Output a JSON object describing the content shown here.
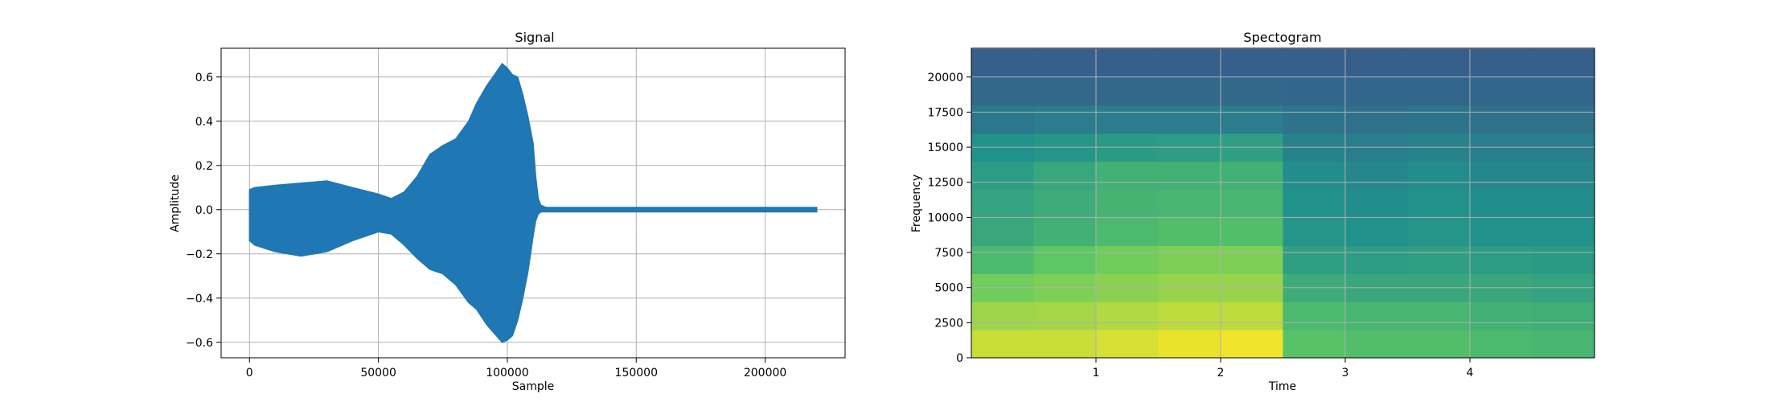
{
  "chart_data": [
    {
      "type": "line",
      "title": "Signal",
      "xlabel": "Sample",
      "ylabel": "Amplitude",
      "xlim": [
        -11000,
        231000
      ],
      "ylim": [
        -0.67,
        0.73
      ],
      "xticks": [
        0,
        50000,
        100000,
        150000,
        200000
      ],
      "xtick_labels": [
        "0",
        "50000",
        "100000",
        "150000",
        "200000"
      ],
      "yticks": [
        -0.6,
        -0.4,
        -0.2,
        0.0,
        0.2,
        0.4,
        0.6
      ],
      "ytick_labels": [
        "−0.6",
        "−0.4",
        "−0.2",
        "0.0",
        "0.2",
        "0.4",
        "0.6"
      ],
      "grid": true,
      "series": [
        {
          "color": "#1f77b4",
          "x": [
            0,
            2000,
            10000,
            20000,
            30000,
            40000,
            50000,
            55000,
            60000,
            65000,
            70000,
            75000,
            80000,
            85000,
            88000,
            92000,
            95000,
            98000,
            100000,
            102000,
            104000,
            106000,
            108000,
            110000,
            111000,
            112000,
            113000,
            115000,
            120000,
            150000,
            200000,
            220000
          ],
          "upper": [
            0.09,
            0.1,
            0.11,
            0.12,
            0.13,
            0.1,
            0.07,
            0.05,
            0.08,
            0.15,
            0.25,
            0.29,
            0.32,
            0.4,
            0.48,
            0.56,
            0.61,
            0.66,
            0.64,
            0.61,
            0.6,
            0.52,
            0.42,
            0.3,
            0.15,
            0.05,
            0.02,
            0.01,
            0.01,
            0.01,
            0.01,
            0.01
          ],
          "lower": [
            -0.14,
            -0.16,
            -0.19,
            -0.21,
            -0.19,
            -0.14,
            -0.1,
            -0.11,
            -0.16,
            -0.22,
            -0.27,
            -0.29,
            -0.34,
            -0.42,
            -0.45,
            -0.52,
            -0.56,
            -0.6,
            -0.59,
            -0.57,
            -0.5,
            -0.4,
            -0.28,
            -0.12,
            -0.05,
            -0.02,
            -0.01,
            -0.01,
            -0.01,
            -0.01,
            -0.01,
            -0.01
          ]
        }
      ]
    },
    {
      "type": "heatmap",
      "title": "Spectogram",
      "xlabel": "Time",
      "ylabel": "Frequency",
      "xlim": [
        0,
        5.0
      ],
      "ylim": [
        0,
        22050
      ],
      "xticks": [
        1,
        2,
        3,
        4
      ],
      "xtick_labels": [
        "1",
        "2",
        "3",
        "4"
      ],
      "yticks": [
        0,
        2500,
        5000,
        7500,
        10000,
        12500,
        15000,
        17500,
        20000
      ],
      "ytick_labels": [
        "0",
        "2500",
        "5000",
        "7500",
        "10000",
        "12500",
        "15000",
        "17500",
        "20000"
      ],
      "grid": true,
      "colormap": "viridis",
      "time_bins": [
        0.25,
        0.75,
        1.25,
        1.75,
        2.25,
        2.75,
        3.25,
        3.75,
        4.25,
        4.75
      ],
      "freq_bins": [
        1000,
        3000,
        5000,
        7000,
        9000,
        11000,
        13000,
        15000,
        17000,
        19000,
        21000
      ],
      "intensity": [
        [
          0.92,
          0.92,
          0.94,
          0.97,
          0.98,
          0.72,
          0.7,
          0.7,
          0.68,
          0.66
        ],
        [
          0.85,
          0.86,
          0.88,
          0.9,
          0.9,
          0.68,
          0.66,
          0.66,
          0.64,
          0.63
        ],
        [
          0.78,
          0.8,
          0.82,
          0.84,
          0.84,
          0.62,
          0.6,
          0.6,
          0.6,
          0.58
        ],
        [
          0.68,
          0.74,
          0.78,
          0.8,
          0.8,
          0.56,
          0.55,
          0.56,
          0.55,
          0.54
        ],
        [
          0.6,
          0.64,
          0.68,
          0.7,
          0.7,
          0.52,
          0.5,
          0.52,
          0.5,
          0.5
        ],
        [
          0.58,
          0.62,
          0.65,
          0.66,
          0.66,
          0.5,
          0.48,
          0.5,
          0.48,
          0.48
        ],
        [
          0.55,
          0.6,
          0.64,
          0.64,
          0.64,
          0.48,
          0.46,
          0.48,
          0.46,
          0.46
        ],
        [
          0.5,
          0.52,
          0.54,
          0.55,
          0.56,
          0.44,
          0.42,
          0.44,
          0.42,
          0.42
        ],
        [
          0.4,
          0.42,
          0.42,
          0.42,
          0.42,
          0.38,
          0.37,
          0.38,
          0.37,
          0.37
        ],
        [
          0.34,
          0.34,
          0.34,
          0.34,
          0.34,
          0.33,
          0.33,
          0.33,
          0.33,
          0.33
        ],
        [
          0.3,
          0.3,
          0.3,
          0.3,
          0.3,
          0.3,
          0.3,
          0.3,
          0.3,
          0.3
        ]
      ]
    }
  ]
}
